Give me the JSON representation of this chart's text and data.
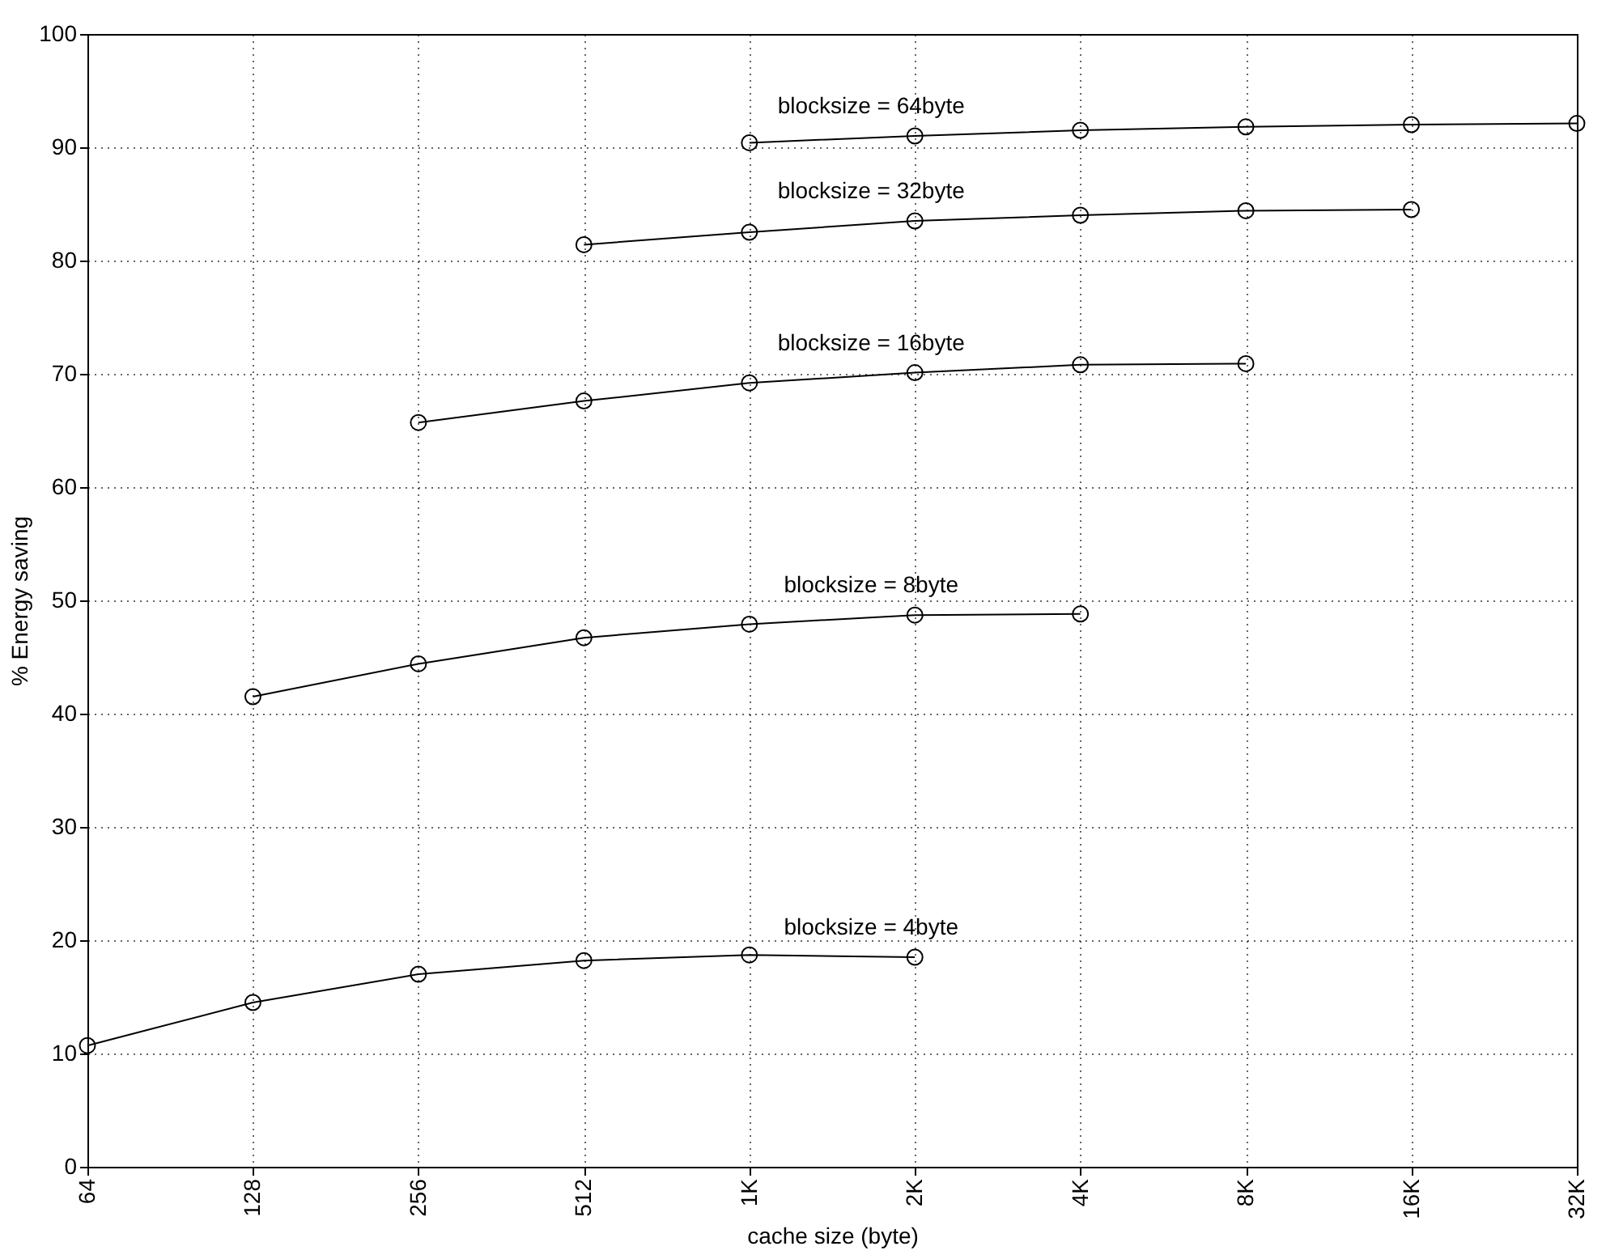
{
  "chart_data": {
    "type": "line",
    "xlabel": "cache size (byte)",
    "ylabel": "% Energy saving",
    "categories": [
      "64",
      "128",
      "256",
      "512",
      "1K",
      "2K",
      "4K",
      "8K",
      "16K",
      "32K"
    ],
    "series": [
      {
        "name": "blocksize = 4byte",
        "color": "#000000",
        "values": [
          10.7,
          14.5,
          17.0,
          18.2,
          18.7,
          18.5,
          null,
          null,
          null,
          null
        ]
      },
      {
        "name": "blocksize = 8byte",
        "color": "#000000",
        "values": [
          null,
          41.5,
          44.4,
          46.7,
          47.9,
          48.7,
          48.8,
          null,
          null,
          null
        ]
      },
      {
        "name": "blocksize = 16byte",
        "color": "#000000",
        "values": [
          null,
          null,
          65.7,
          67.6,
          69.2,
          70.1,
          70.8,
          70.9,
          null,
          null
        ]
      },
      {
        "name": "blocksize = 32byte",
        "color": "#000000",
        "values": [
          null,
          null,
          null,
          81.4,
          82.5,
          83.5,
          84.0,
          84.4,
          84.5,
          null
        ]
      },
      {
        "name": "blocksize = 64byte",
        "color": "#000000",
        "values": [
          null,
          null,
          null,
          null,
          90.4,
          91.0,
          91.5,
          91.8,
          92.0,
          92.1
        ]
      }
    ],
    "ylim": [
      0,
      100
    ],
    "yticks": [
      0,
      10,
      20,
      30,
      40,
      50,
      60,
      70,
      80,
      90,
      100
    ],
    "grid": true,
    "legend": false,
    "marker": "circle",
    "line_style": "solid"
  }
}
